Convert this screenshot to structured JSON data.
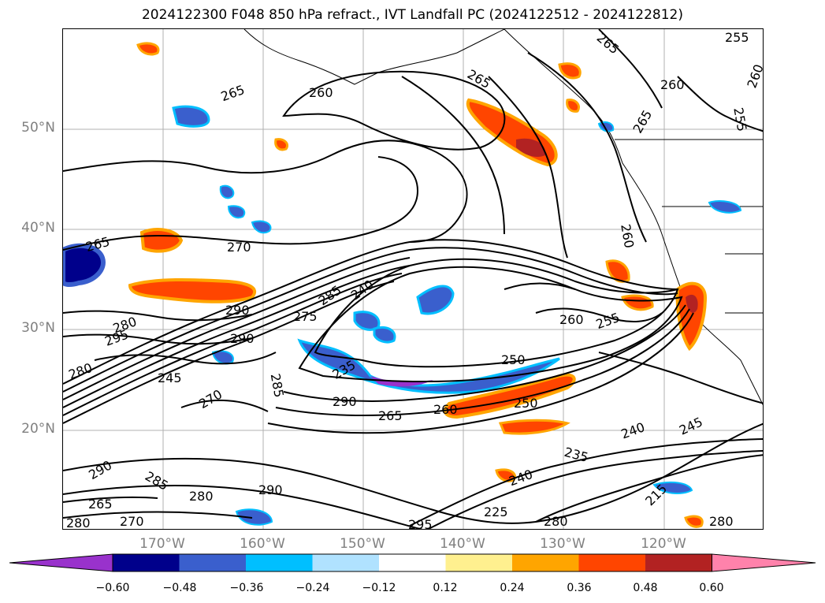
{
  "title": "2024122300 F048 850 hPa refract., IVT Landfall PC (2024122512 - 2024122812)",
  "lat_labels": [
    "50°N",
    "40°N",
    "30°N",
    "20°N"
  ],
  "lon_labels": [
    "170°W",
    "160°W",
    "150°W",
    "140°W",
    "130°W",
    "120°W"
  ],
  "contour_labels": [
    "265",
    "260",
    "265",
    "265",
    "260",
    "265",
    "255",
    "260",
    "255",
    "265",
    "270",
    "260",
    "280",
    "295",
    "280",
    "285",
    "240",
    "290",
    "290",
    "275",
    "235",
    "250",
    "260",
    "255",
    "245",
    "270",
    "285",
    "290",
    "265",
    "260",
    "250",
    "240",
    "245",
    "235",
    "240",
    "215",
    "290",
    "285",
    "280",
    "265",
    "280",
    "270",
    "290",
    "295",
    "225",
    "280",
    "280"
  ],
  "colorbar": {
    "ticks": [
      "−0.60",
      "−0.48",
      "−0.36",
      "−0.24",
      "−0.12",
      "0.12",
      "0.24",
      "0.36",
      "0.48",
      "0.60"
    ],
    "colors": [
      "#9932cc",
      "#00008b",
      "#3a5fcd",
      "#00bfff",
      "#b0e2ff",
      "#ffffff",
      "#fff08f",
      "#ffa500",
      "#ff4500",
      "#b22222",
      "#ff82ab"
    ]
  }
}
